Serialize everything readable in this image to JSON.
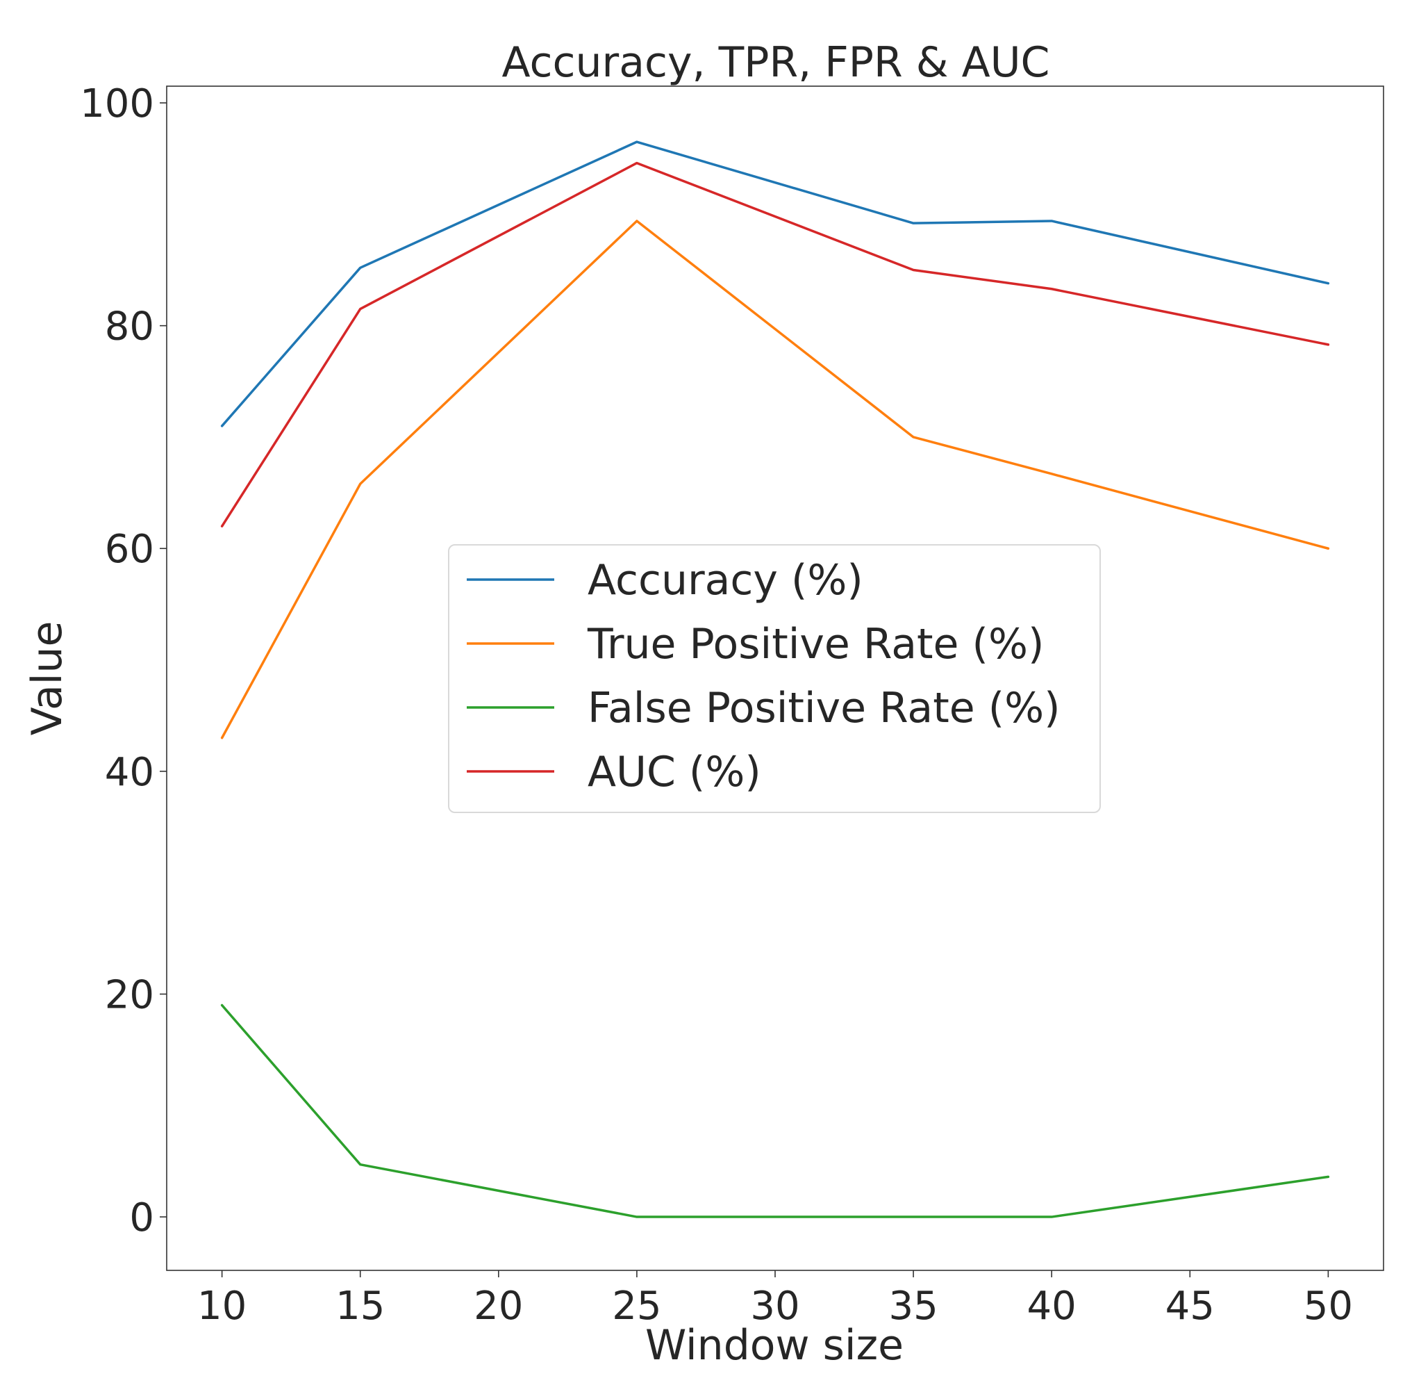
{
  "chart_data": {
    "type": "line",
    "title": "Accuracy, TPR, FPR & AUC",
    "xlabel": "Window size",
    "ylabel": "Value",
    "x": [
      10,
      15,
      25,
      35,
      40,
      50
    ],
    "xlim": [
      8,
      52
    ],
    "ylim": [
      -4.8,
      101.5
    ],
    "xticks": [
      10,
      15,
      20,
      25,
      30,
      35,
      40,
      45,
      50
    ],
    "yticks": [
      0,
      20,
      40,
      60,
      80,
      100
    ],
    "grid": false,
    "legend_position": "center",
    "series": [
      {
        "name": "Accuracy (%)",
        "color": "#1f77b4",
        "values": [
          71.0,
          85.2,
          96.5,
          89.2,
          89.4,
          83.8
        ]
      },
      {
        "name": "True Positive Rate (%)",
        "color": "#ff7f0e",
        "values": [
          43.0,
          65.8,
          89.4,
          70.0,
          66.7,
          60.0
        ]
      },
      {
        "name": "False Positive Rate (%)",
        "color": "#2ca02c",
        "values": [
          19.0,
          4.7,
          0.0,
          0.0,
          0.0,
          3.6
        ]
      },
      {
        "name": "AUC (%)",
        "color": "#d62728",
        "values": [
          62.0,
          81.5,
          94.6,
          85.0,
          83.3,
          78.3
        ]
      }
    ]
  }
}
